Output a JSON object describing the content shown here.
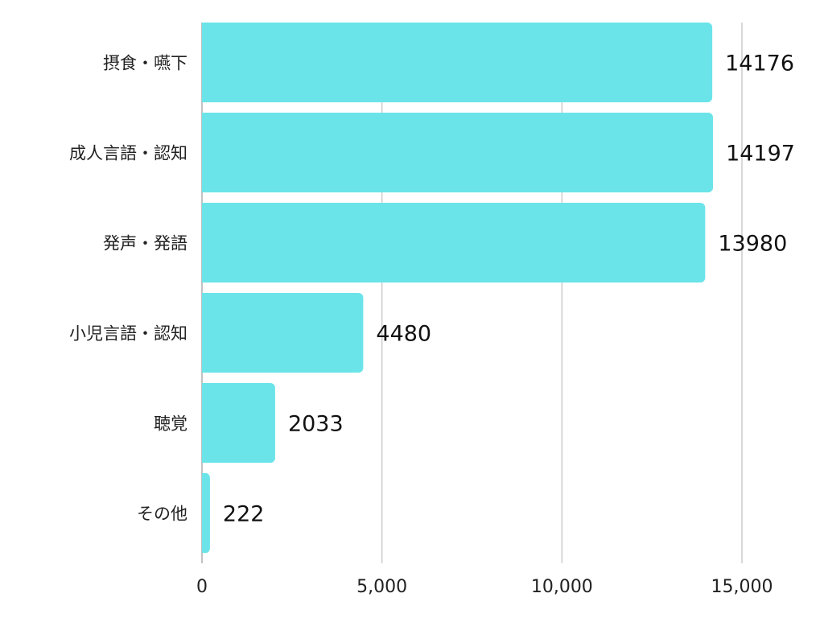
{
  "chart_data": {
    "type": "bar",
    "orientation": "horizontal",
    "categories": [
      "摂食・嚥下",
      "成人言語・認知",
      "発声・発語",
      "小児言語・認知",
      "聴覚",
      "その他"
    ],
    "values": [
      14176,
      14197,
      13980,
      4480,
      2033,
      222
    ],
    "data_labels": [
      "14176",
      "14197",
      "13980",
      "4480",
      "2033",
      "222"
    ],
    "xlim": [
      0,
      15000
    ],
    "x_ticks": [
      0,
      5000,
      10000,
      15000
    ],
    "x_tick_labels": [
      "0",
      "5,000",
      "10,000",
      "15,000"
    ],
    "grid": true,
    "title": "",
    "xlabel": "",
    "ylabel": "",
    "colors": {
      "bar": "#6be4e9",
      "grid": "#cccccc",
      "axis": "#999999"
    }
  }
}
